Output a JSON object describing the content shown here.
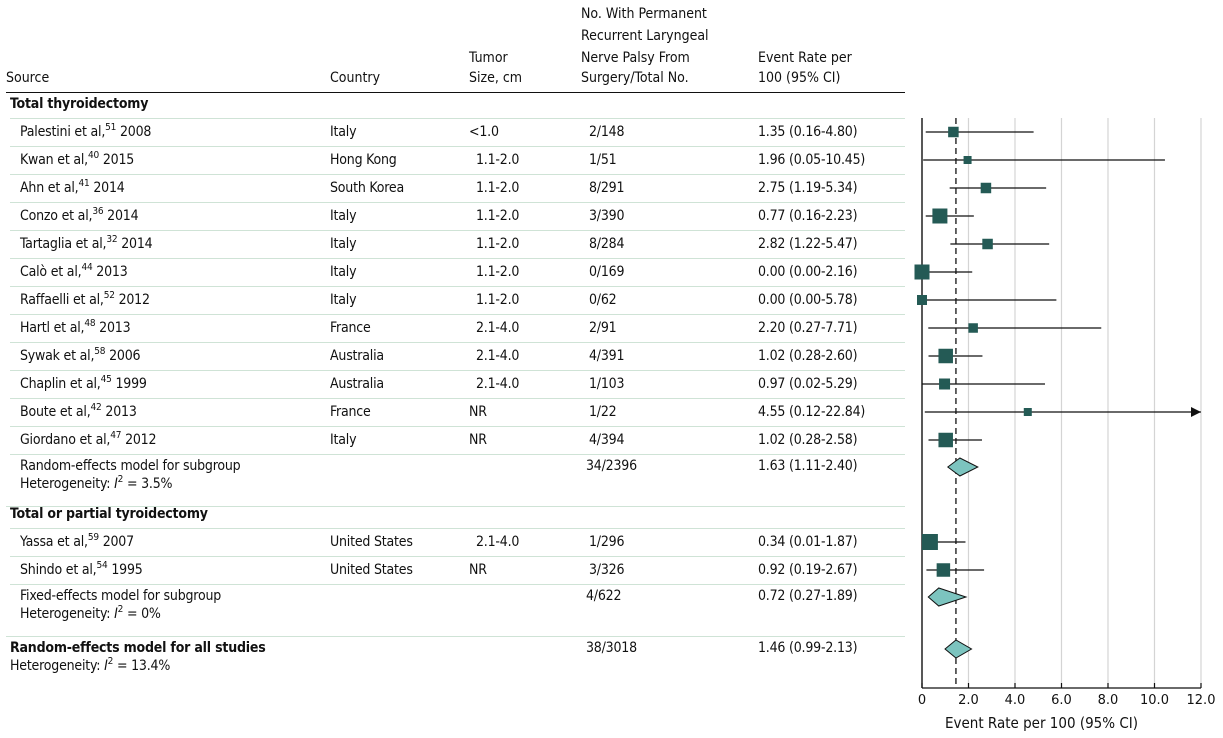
{
  "table": {
    "headers": {
      "source": "Source",
      "country": "Country",
      "tumor_size": [
        "Tumor",
        "Size, cm"
      ],
      "events": [
        "No. With Permanent",
        "Recurrent Laryngeal",
        "Nerve Palsy From",
        "Surgery/Total No."
      ],
      "rate": [
        "Event Rate per",
        "100 (95% CI)"
      ]
    },
    "groups": [
      {
        "title": "Total thyroidectomy",
        "studies": [
          {
            "author": "Palestini et al,",
            "ref": "51",
            "year": "2008",
            "country": "Italy",
            "size": "<1.0",
            "events": "2/148",
            "rate_text": "1.35 (0.16-4.80)"
          },
          {
            "author": "Kwan et al,",
            "ref": "40",
            "year": "2015",
            "country": "Hong Kong",
            "size": "1.1-2.0",
            "events": "1/51",
            "rate_text": "1.96 (0.05-10.45)"
          },
          {
            "author": "Ahn et al,",
            "ref": "41",
            "year": "2014",
            "country": "South Korea",
            "size": "1.1-2.0",
            "events": "8/291",
            "rate_text": "2.75 (1.19-5.34)"
          },
          {
            "author": "Conzo et al,",
            "ref": "36",
            "year": "2014",
            "country": "Italy",
            "size": "1.1-2.0",
            "events": "3/390",
            "rate_text": "0.77 (0.16-2.23)"
          },
          {
            "author": "Tartaglia et al,",
            "ref": "32",
            "year": "2014",
            "country": "Italy",
            "size": "1.1-2.0",
            "events": "8/284",
            "rate_text": "2.82 (1.22-5.47)"
          },
          {
            "author": "Calò et al,",
            "ref": "44",
            "year": "2013",
            "country": "Italy",
            "size": "1.1-2.0",
            "events": "0/169",
            "rate_text": "0.00 (0.00-2.16)"
          },
          {
            "author": "Raffaelli et al,",
            "ref": "52",
            "year": "2012",
            "country": "Italy",
            "size": "1.1-2.0",
            "events": "0/62",
            "rate_text": "0.00 (0.00-5.78)"
          },
          {
            "author": "Hartl et al,",
            "ref": "48",
            "year": "2013",
            "country": "France",
            "size": "2.1-4.0",
            "events": "2/91",
            "rate_text": "2.20 (0.27-7.71)"
          },
          {
            "author": "Sywak et al,",
            "ref": "58",
            "year": "2006",
            "country": "Australia",
            "size": "2.1-4.0",
            "events": "4/391",
            "rate_text": "1.02 (0.28-2.60)"
          },
          {
            "author": "Chaplin et al,",
            "ref": "45",
            "year": "1999",
            "country": "Australia",
            "size": "2.1-4.0",
            "events": "1/103",
            "rate_text": "0.97 (0.02-5.29)"
          },
          {
            "author": "Boute et al,",
            "ref": "42",
            "year": "2013",
            "country": "France",
            "size": "NR",
            "events": "1/22",
            "rate_text": "4.55 (0.12-22.84)"
          },
          {
            "author": "Giordano et al,",
            "ref": "47",
            "year": "2012",
            "country": "Italy",
            "size": "NR",
            "events": "4/394",
            "rate_text": "1.02 (0.28-2.58)"
          }
        ],
        "summary": {
          "label": "Random-effects model for subgroup",
          "het_prefix": "Heterogeneity: ",
          "het_I": "I",
          "het_sup": "2",
          "het_value": " = 3.5%",
          "events": "34/2396",
          "rate_text": "1.63 (1.11-2.40)"
        }
      },
      {
        "title": "Total or partial tyroidectomy",
        "studies": [
          {
            "author": "Yassa et al,",
            "ref": "59",
            "year": "2007",
            "country": "United States",
            "size": "2.1-4.0",
            "events": "1/296",
            "rate_text": "0.34 (0.01-1.87)"
          },
          {
            "author": "Shindo et al,",
            "ref": "54",
            "year": "1995",
            "country": "United States",
            "size": "NR",
            "events": "3/326",
            "rate_text": "0.92 (0.19-2.67)"
          }
        ],
        "summary": {
          "label": "Fixed-effects model for subgroup",
          "het_prefix": "Heterogeneity: ",
          "het_I": "I",
          "het_sup": "2",
          "het_value": " = 0%",
          "events": "4/622",
          "rate_text": "0.72 (0.27-1.89)"
        }
      }
    ],
    "overall": {
      "label": "Random-effects model for all studies",
      "het_prefix": "Heterogeneity: ",
      "het_I": "I",
      "het_sup": "2",
      "het_value": " = 13.4%",
      "events": "38/3018",
      "rate_text": "1.46 (0.99-2.13)"
    }
  },
  "chart_data": {
    "type": "forest",
    "xlabel": "Event Rate per 100 (95% CI)",
    "xlim": [
      0,
      12
    ],
    "xticks": [
      0,
      2,
      4,
      6,
      8,
      10,
      12
    ],
    "xtick_labels": [
      "0",
      "2.0",
      "4.0",
      "6.0",
      "8.0",
      "10.0",
      "12.0"
    ],
    "grid": true,
    "reference_line": 1.46,
    "colors": {
      "square": "#245a55",
      "diamond": "#7cc4bf",
      "grid": "#d4d4d4",
      "row_line": "#cfe3d6"
    },
    "studies": [
      {
        "label": "Palestini et al 2008",
        "est": 1.35,
        "lo": 0.16,
        "hi": 4.8,
        "weight": 0.55
      },
      {
        "label": "Kwan et al 2015",
        "est": 1.96,
        "lo": 0.05,
        "hi": 10.45,
        "weight": 0.3
      },
      {
        "label": "Ahn et al 2014",
        "est": 2.75,
        "lo": 1.19,
        "hi": 5.34,
        "weight": 0.55
      },
      {
        "label": "Conzo et al 2014",
        "est": 0.77,
        "lo": 0.16,
        "hi": 2.23,
        "weight": 1.0
      },
      {
        "label": "Tartaglia et al 2014",
        "est": 2.82,
        "lo": 1.22,
        "hi": 5.47,
        "weight": 0.55
      },
      {
        "label": "Calò et al 2013",
        "est": 0.0,
        "lo": 0.0,
        "hi": 2.16,
        "weight": 1.0
      },
      {
        "label": "Raffaelli et al 2012",
        "est": 0.0,
        "lo": 0.0,
        "hi": 5.78,
        "weight": 0.5
      },
      {
        "label": "Hartl et al 2013",
        "est": 2.2,
        "lo": 0.27,
        "hi": 7.71,
        "weight": 0.45
      },
      {
        "label": "Sywak et al 2006",
        "est": 1.02,
        "lo": 0.28,
        "hi": 2.6,
        "weight": 0.95
      },
      {
        "label": "Chaplin et al 1999",
        "est": 0.97,
        "lo": 0.02,
        "hi": 5.29,
        "weight": 0.6
      },
      {
        "label": "Boute et al 2013",
        "est": 4.55,
        "lo": 0.12,
        "hi": 22.84,
        "weight": 0.3,
        "arrow": true
      },
      {
        "label": "Giordano et al 2012",
        "est": 1.02,
        "lo": 0.28,
        "hi": 2.58,
        "weight": 0.95
      },
      {
        "label": "Random-effects model for subgroup",
        "est": 1.63,
        "lo": 1.11,
        "hi": 2.4,
        "summary": true
      },
      {
        "label": "Yassa et al 2007",
        "est": 0.34,
        "lo": 0.01,
        "hi": 1.87,
        "weight": 1.1
      },
      {
        "label": "Shindo et al 1995",
        "est": 0.92,
        "lo": 0.19,
        "hi": 2.67,
        "weight": 0.85
      },
      {
        "label": "Fixed-effects model for subgroup",
        "est": 0.72,
        "lo": 0.27,
        "hi": 1.89,
        "summary": true
      },
      {
        "label": "Random-effects model for all studies",
        "est": 1.46,
        "lo": 0.99,
        "hi": 2.13,
        "summary": true
      }
    ]
  }
}
